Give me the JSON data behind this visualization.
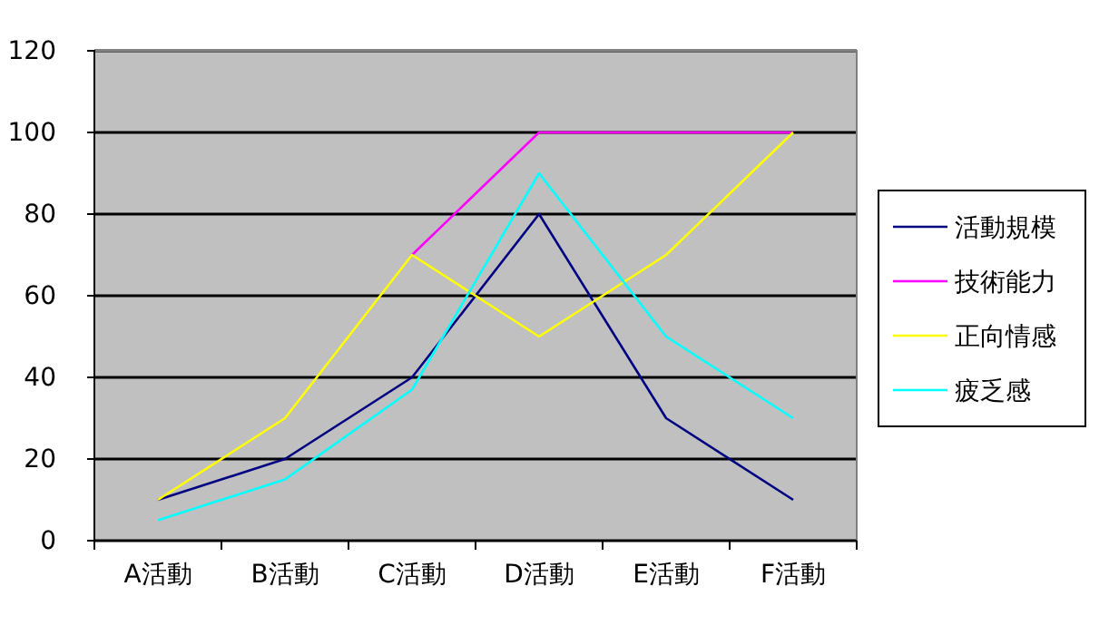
{
  "chart_data": {
    "type": "line",
    "categories": [
      "A活動",
      "B活動",
      "C活動",
      "D活動",
      "E活動",
      "F活動"
    ],
    "series": [
      {
        "name": "活動規模",
        "color": "#000080",
        "values": [
          10,
          20,
          40,
          80,
          30,
          10
        ]
      },
      {
        "name": "技術能力",
        "color": "#ff00ff",
        "values": [
          null,
          null,
          70,
          100,
          100,
          100
        ]
      },
      {
        "name": "正向情感",
        "color": "#ffff00",
        "values": [
          10,
          30,
          70,
          50,
          70,
          100
        ]
      },
      {
        "name": "疲乏感",
        "color": "#00ffff",
        "values": [
          5,
          15,
          37,
          90,
          50,
          30
        ]
      }
    ],
    "ylim": [
      0,
      120
    ],
    "yticks": [
      0,
      20,
      40,
      60,
      80,
      100,
      120
    ],
    "grid": "y",
    "legend": "right",
    "marker": "none",
    "line_style": "solid"
  }
}
